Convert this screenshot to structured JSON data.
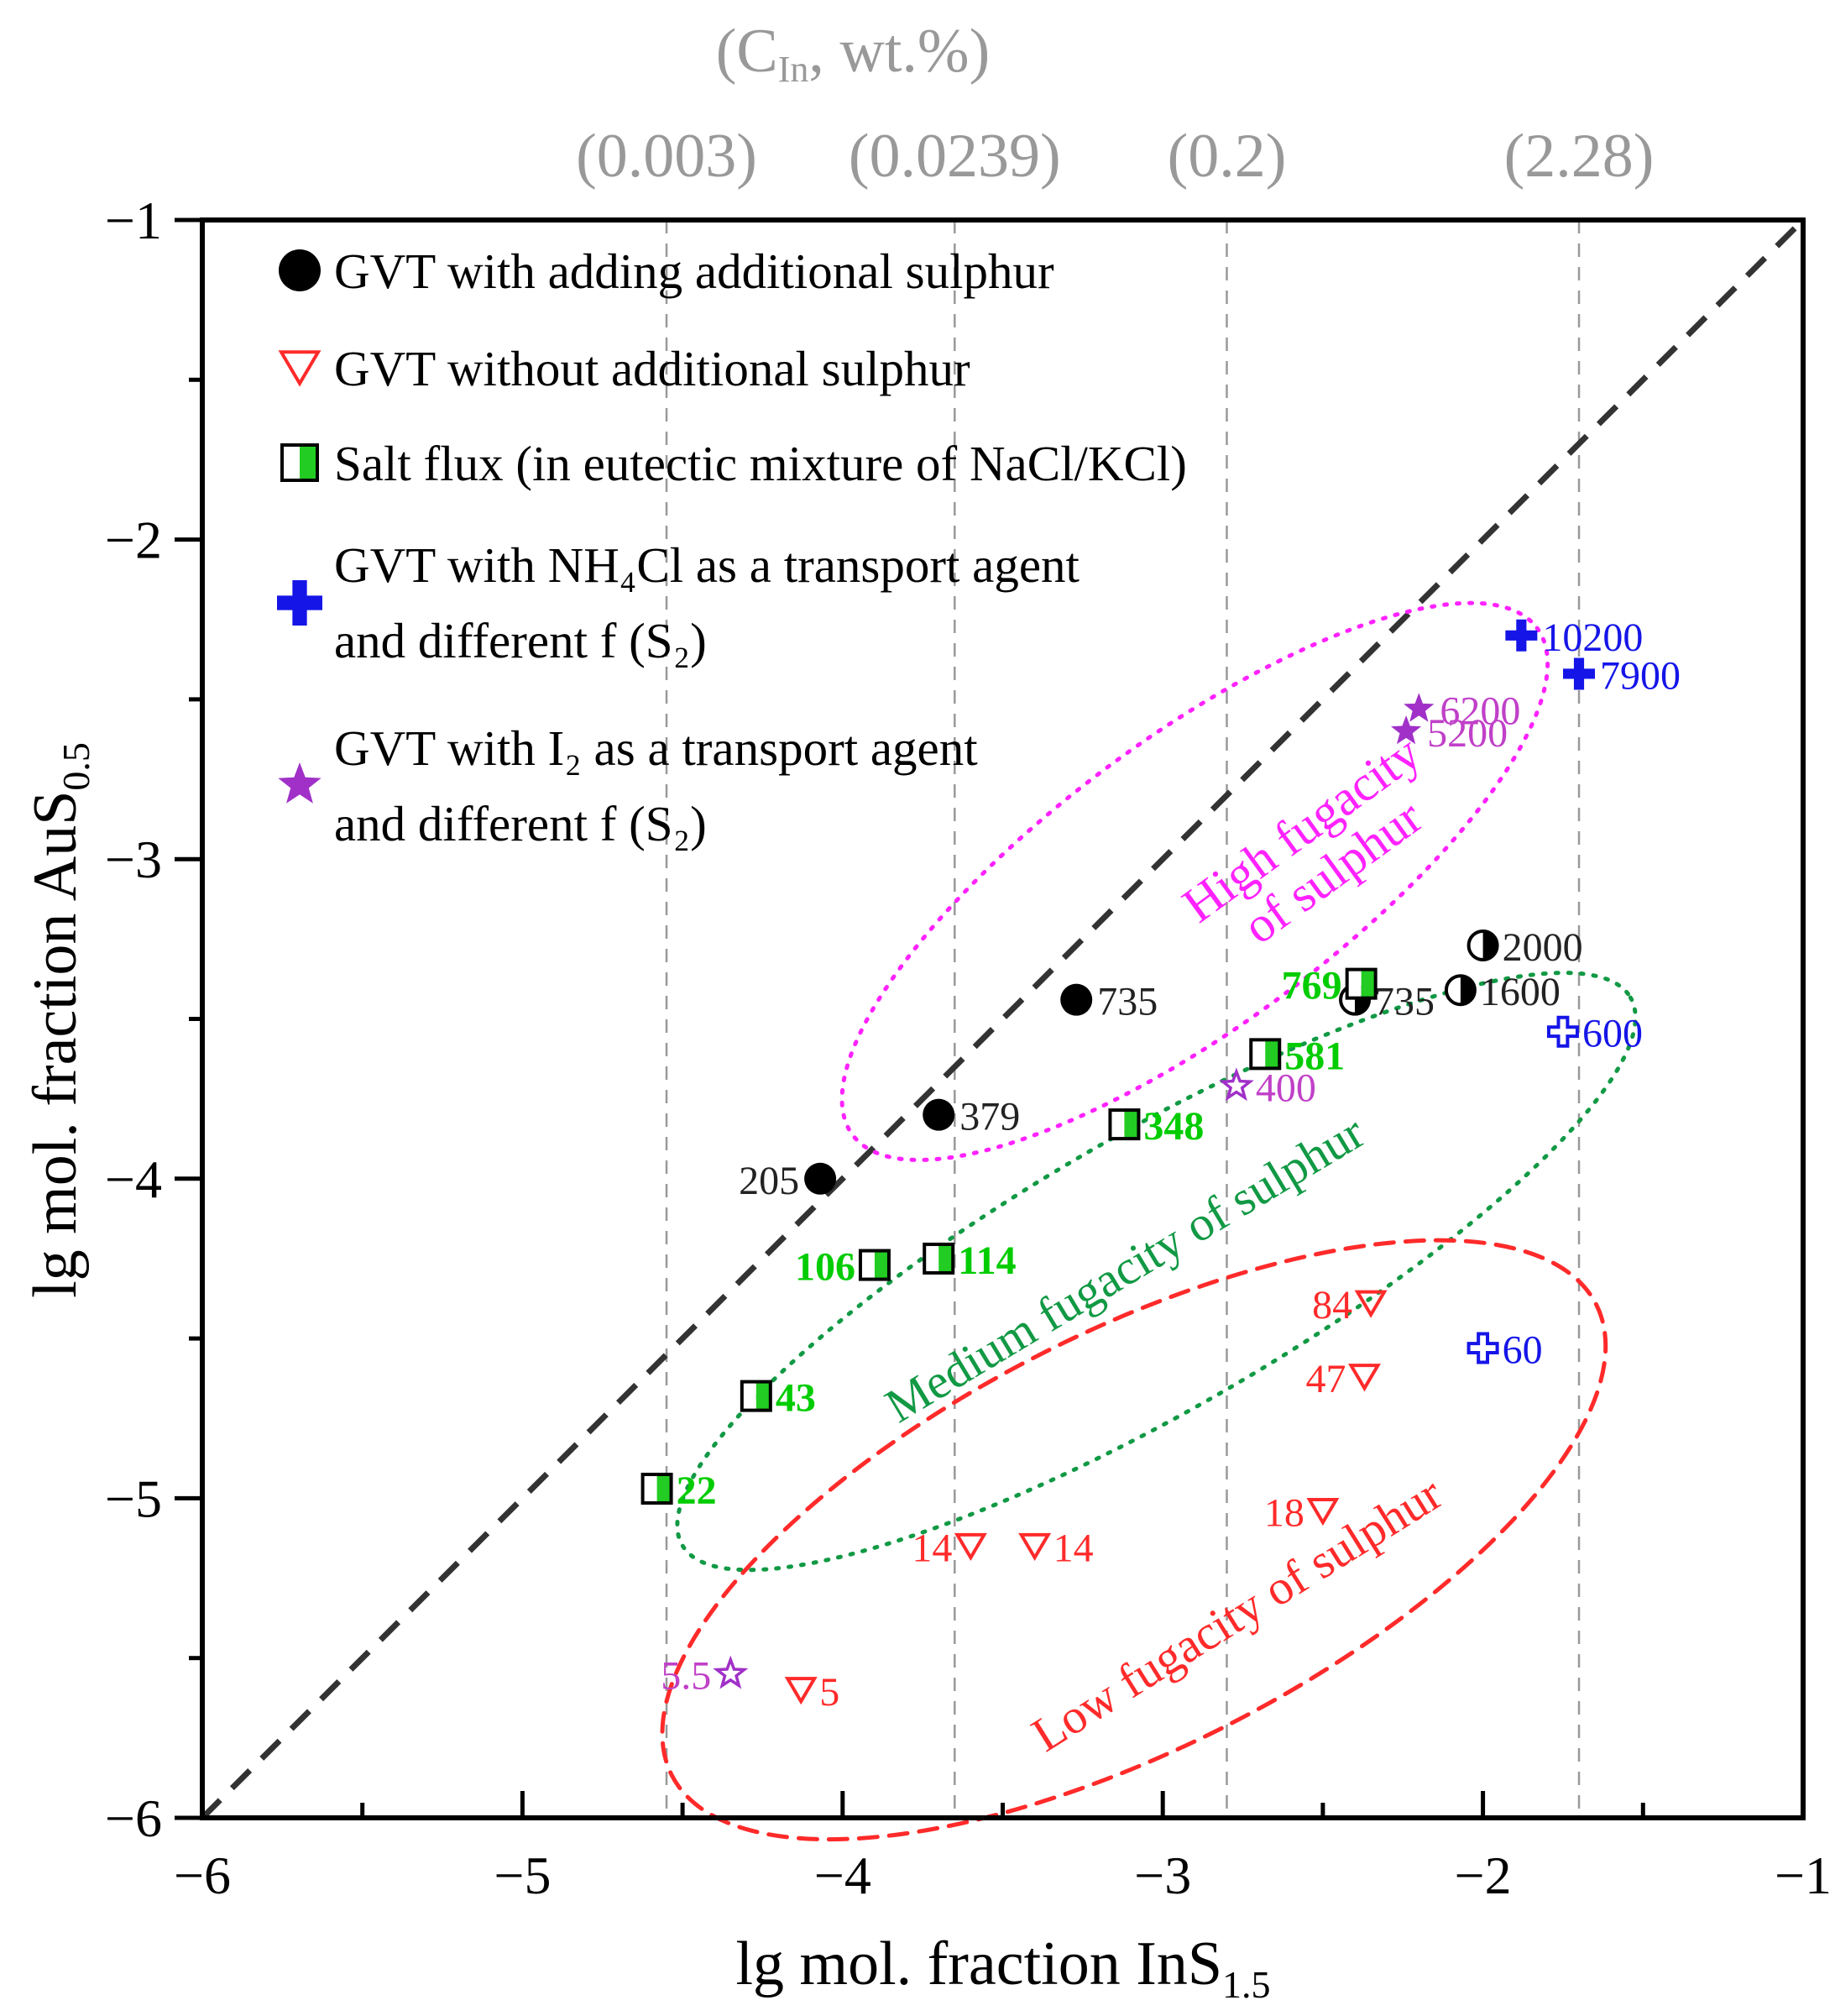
{
  "chart_data": {
    "type": "scatter",
    "title": "",
    "xlabel_main": "lg mol. fraction  InS",
    "xlabel_sub": "1.5",
    "ylabel_main": "lg mol. fraction  AuS",
    "ylabel_sub": "0.5",
    "xlim": [
      -6,
      -1
    ],
    "ylim": [
      -6,
      -1
    ],
    "x_ticks": [
      -6,
      -5,
      -4,
      -3,
      -2,
      -1
    ],
    "x_tick_labels": [
      "−6",
      "−5",
      "−4",
      "−3",
      "−2",
      "−1"
    ],
    "y_ticks": [
      -1,
      -2,
      -3,
      -4,
      -5,
      -6
    ],
    "y_tick_labels": [
      "−1",
      "−2",
      "−3",
      "−4",
      "−5",
      "−6"
    ],
    "top_axis": {
      "title_parts": [
        "(C",
        "In",
        ", wt.%)"
      ],
      "ticks": [
        {
          "x": -4.55,
          "label": "(0.003)"
        },
        {
          "x": -3.65,
          "label": "(0.0239)"
        },
        {
          "x": -2.8,
          "label": "(0.2)"
        },
        {
          "x": -1.7,
          "label": "(2.28)"
        }
      ]
    },
    "reference_line": {
      "from": [
        -6,
        -6
      ],
      "to": [
        -1,
        -1
      ],
      "style": "dashed",
      "color": "#333333"
    },
    "legend": [
      {
        "marker": "circle",
        "color": "#000000",
        "lines": [
          "GVT with adding additional sulphur"
        ]
      },
      {
        "marker": "triangle-down-open",
        "color": "#ff2a2a",
        "lines": [
          "GVT without additional sulphur"
        ]
      },
      {
        "marker": "half-square",
        "color": "#22cc22",
        "lines": [
          "Salt flux (in eutectic mixture of NaCl/KCl)"
        ]
      },
      {
        "marker": "plus",
        "color": "#1515e8",
        "lines": [
          "GVT with NH₄Cl as a transport agent",
          "and different f (S₂)"
        ]
      },
      {
        "marker": "star",
        "color": "#a030c8",
        "lines": [
          "GVT with I₂ as a transport agent",
          "and different f (S₂)"
        ]
      }
    ],
    "series": [
      {
        "name": "GVT with adding additional sulphur",
        "marker": "circle",
        "color": "#000000",
        "points": [
          {
            "x": -4.07,
            "y": -4.0,
            "label": "205"
          },
          {
            "x": -3.7,
            "y": -3.8,
            "label": "379"
          },
          {
            "x": -3.27,
            "y": -3.44,
            "label": "735"
          }
        ]
      },
      {
        "name": "GVT with adding additional sulphur (half-filled)",
        "marker": "half-circle",
        "color": "#000000",
        "points": [
          {
            "x": -2.4,
            "y": -3.44,
            "label": "735"
          },
          {
            "x": -2.07,
            "y": -3.41,
            "label": "1600"
          },
          {
            "x": -2.0,
            "y": -3.27,
            "label": "2000"
          }
        ]
      },
      {
        "name": "GVT without additional sulphur",
        "marker": "triangle-down-open",
        "color": "#ff2a2a",
        "points": [
          {
            "x": -2.35,
            "y": -4.39,
            "label": "84"
          },
          {
            "x": -2.37,
            "y": -4.62,
            "label": "47"
          },
          {
            "x": -2.5,
            "y": -5.04,
            "label": "18"
          },
          {
            "x": -3.6,
            "y": -5.15,
            "label": "14"
          },
          {
            "x": -3.4,
            "y": -5.15,
            "label": "14"
          },
          {
            "x": -4.13,
            "y": -5.6,
            "label": "5"
          }
        ]
      },
      {
        "name": "Salt flux (in eutectic mixture of NaCl/KCl)",
        "marker": "half-square",
        "color": "#22cc22",
        "points": [
          {
            "x": -4.58,
            "y": -4.97,
            "label": "22"
          },
          {
            "x": -4.27,
            "y": -4.68,
            "label": "43"
          },
          {
            "x": -3.9,
            "y": -4.27,
            "label": "106"
          },
          {
            "x": -3.7,
            "y": -4.25,
            "label": "114"
          },
          {
            "x": -3.12,
            "y": -3.83,
            "label": "348"
          },
          {
            "x": -2.68,
            "y": -3.61,
            "label": "581"
          },
          {
            "x": -2.38,
            "y": -3.39,
            "label": "769"
          }
        ]
      },
      {
        "name": "GVT with NH4Cl as a transport agent",
        "marker": "plus",
        "color": "#1515e8",
        "points": [
          {
            "x": -1.88,
            "y": -2.3,
            "label": "10200"
          },
          {
            "x": -1.7,
            "y": -2.42,
            "label": "7900"
          }
        ]
      },
      {
        "name": "GVT with NH4Cl as a transport agent (open)",
        "marker": "plus-open",
        "color": "#1515e8",
        "points": [
          {
            "x": -1.75,
            "y": -3.54,
            "label": "600"
          },
          {
            "x": -2.0,
            "y": -4.53,
            "label": "60"
          }
        ]
      },
      {
        "name": "GVT with I2 as a transport agent",
        "marker": "star",
        "color": "#a030c8",
        "points": [
          {
            "x": -2.2,
            "y": -2.53,
            "label": "6200"
          },
          {
            "x": -2.24,
            "y": -2.6,
            "label": "5200"
          }
        ]
      },
      {
        "name": "GVT with I2 as a transport agent (open)",
        "marker": "star-open",
        "color": "#a030c8",
        "points": [
          {
            "x": -2.77,
            "y": -3.71,
            "label": "400"
          },
          {
            "x": -4.35,
            "y": -5.55,
            "label": "5.5"
          }
        ]
      }
    ],
    "regions": [
      {
        "label": "High fugacity of sulphur",
        "lines": [
          "High fugacity",
          "of sulphur"
        ],
        "color": "#ff22ff",
        "style": "dotted",
        "center": [
          -2.9,
          -3.07
        ],
        "radii": [
          1.33,
          0.45
        ],
        "angle_deg": 36.5
      },
      {
        "label": "Medium fugacity of sulphur",
        "lines": [
          "Medium fugacity of sulphur"
        ],
        "color": "#119944",
        "style": "dotted",
        "center": [
          -3.02,
          -4.29
        ],
        "radii": [
          1.71,
          0.43
        ],
        "angle_deg": 30
      },
      {
        "label": "Low fugacity of sulphur",
        "lines": [
          "Low fugacity of sulphur"
        ],
        "color": "#ff2a2a",
        "style": "dashed",
        "center": [
          -3.09,
          -5.13
        ],
        "radii": [
          1.62,
          0.65
        ],
        "angle_deg": 27
      }
    ]
  }
}
